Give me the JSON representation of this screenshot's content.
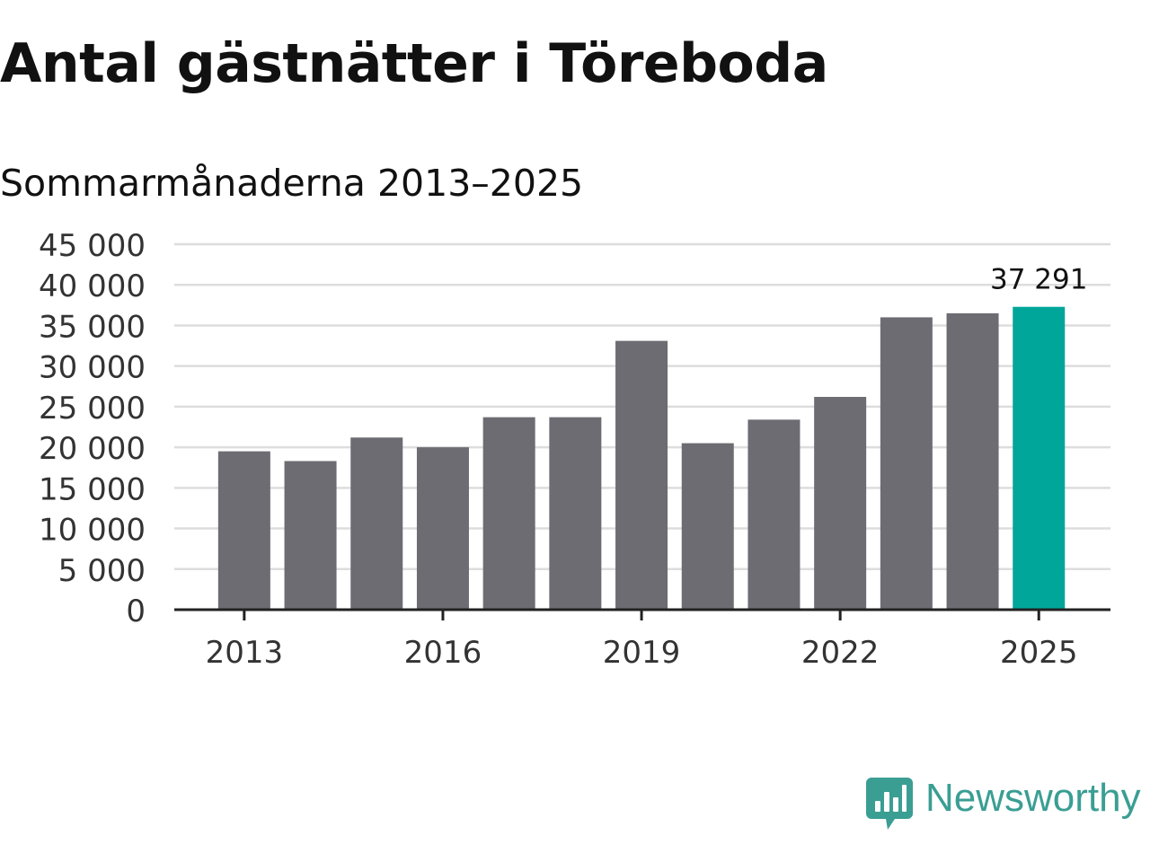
{
  "header": {
    "title": "Antal gästnätter i Töreboda",
    "subtitle": "Sommarmånaderna 2013–2025"
  },
  "chart_data": {
    "type": "bar",
    "title": "Antal gästnätter i Töreboda",
    "subtitle": "Sommarmånaderna 2013–2025",
    "xlabel": "",
    "ylabel": "",
    "categories": [
      "2013",
      "2014",
      "2015",
      "2016",
      "2017",
      "2018",
      "2019",
      "2020",
      "2021",
      "2022",
      "2023",
      "2024",
      "2025"
    ],
    "values": [
      19500,
      18300,
      21200,
      20000,
      23700,
      23700,
      33100,
      20500,
      23400,
      26200,
      36000,
      36500,
      37291
    ],
    "ylim": [
      0,
      45000
    ],
    "y_ticks": [
      0,
      5000,
      10000,
      15000,
      20000,
      25000,
      30000,
      35000,
      40000,
      45000
    ],
    "y_tick_labels": [
      "0",
      "5 000",
      "10 000",
      "15 000",
      "20 000",
      "25 000",
      "30 000",
      "35 000",
      "40 000",
      "45 000"
    ],
    "x_tick_labels": [
      "2013",
      "2016",
      "2019",
      "2022",
      "2025"
    ],
    "highlight": {
      "category": "2025",
      "label": "37 291"
    },
    "grid": true,
    "legend": "none",
    "colors": {
      "bar": "#6d6c72",
      "highlight": "#00a69a",
      "grid": "#dddddd",
      "axis": "#222222",
      "text": "#333333"
    }
  },
  "brand": {
    "name": "Newsworthy",
    "icon": "bar-chart-speech-bubble-icon",
    "color": "#3a9e93"
  }
}
